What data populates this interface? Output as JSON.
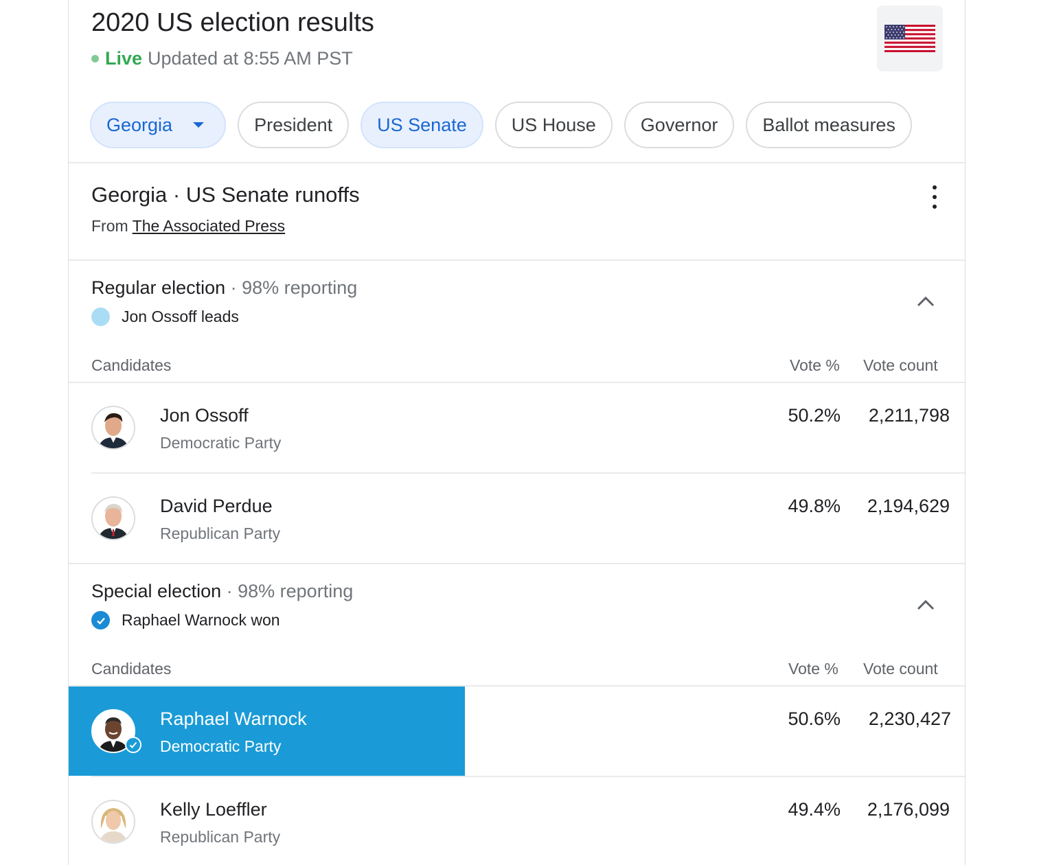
{
  "header": {
    "title": "2020 US election results",
    "live_label": "Live",
    "updated_text": "Updated at 8:55 AM PST",
    "flag_icon": "us-flag-icon"
  },
  "chips": {
    "state": "Georgia",
    "president": "President",
    "senate": "US Senate",
    "house": "US House",
    "governor": "Governor",
    "ballot": "Ballot measures"
  },
  "section": {
    "title": "Georgia · US Senate runoffs",
    "source_prefix": "From",
    "source_link": "The Associated Press"
  },
  "races": [
    {
      "name": "Regular election",
      "reporting": " · 98% reporting",
      "status": "Jon Ossoff leads",
      "headers": {
        "candidates": "Candidates",
        "vote_pct": "Vote %",
        "vote_count": "Vote count"
      },
      "candidates": [
        {
          "name": "Jon Ossoff",
          "party": "Democratic Party",
          "vote_pct": "50.2%",
          "vote_count": "2,211,798"
        },
        {
          "name": "David Perdue",
          "party": "Republican Party",
          "vote_pct": "49.8%",
          "vote_count": "2,194,629"
        }
      ]
    },
    {
      "name": "Special election",
      "reporting": " · 98% reporting",
      "status": "Raphael Warnock won",
      "headers": {
        "candidates": "Candidates",
        "vote_pct": "Vote %",
        "vote_count": "Vote count"
      },
      "candidates": [
        {
          "name": "Raphael Warnock",
          "party": "Democratic Party",
          "vote_pct": "50.6%",
          "vote_count": "2,230,427"
        },
        {
          "name": "Kelly Loeffler",
          "party": "Republican Party",
          "vote_pct": "49.4%",
          "vote_count": "2,176,099"
        }
      ]
    }
  ],
  "colors": {
    "democrat_lead": "#aadcf5",
    "winner_highlight": "#1a9bd7",
    "live_green": "#34a853",
    "chip_selected_text": "#1967d2"
  }
}
